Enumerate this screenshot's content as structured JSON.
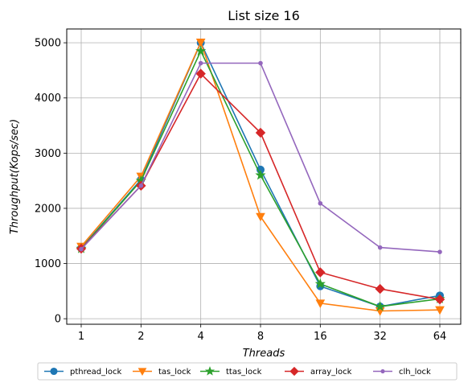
{
  "chart_data": {
    "type": "line",
    "title": "List size 16",
    "xlabel": "Threads",
    "ylabel": "Throughput(Kops/sec)",
    "categories": [
      "1",
      "2",
      "4",
      "8",
      "16",
      "32",
      "64"
    ],
    "ylim": [
      -100,
      5250
    ],
    "yticks": [
      0,
      1000,
      2000,
      3000,
      4000,
      5000
    ],
    "grid": true,
    "legend_position": "bottom-center",
    "series": [
      {
        "name": "pthread_lock",
        "color": "#1f77b4",
        "marker": "circle",
        "values": [
          1280,
          2520,
          5000,
          2700,
          590,
          220,
          420
        ]
      },
      {
        "name": "tas_lock",
        "color": "#ff7f0e",
        "marker": "triangle-down",
        "values": [
          1310,
          2580,
          5010,
          1850,
          280,
          140,
          160
        ]
      },
      {
        "name": "ttas_lock",
        "color": "#2ca02c",
        "marker": "star",
        "values": [
          1270,
          2500,
          4850,
          2600,
          630,
          220,
          360
        ]
      },
      {
        "name": "array_lock",
        "color": "#d62728",
        "marker": "diamond",
        "values": [
          1270,
          2410,
          4440,
          3370,
          840,
          540,
          350
        ]
      },
      {
        "name": "clh_lock",
        "color": "#9467bd",
        "marker": "point",
        "values": [
          1260,
          2410,
          4630,
          4630,
          2090,
          1290,
          1210
        ]
      }
    ]
  }
}
